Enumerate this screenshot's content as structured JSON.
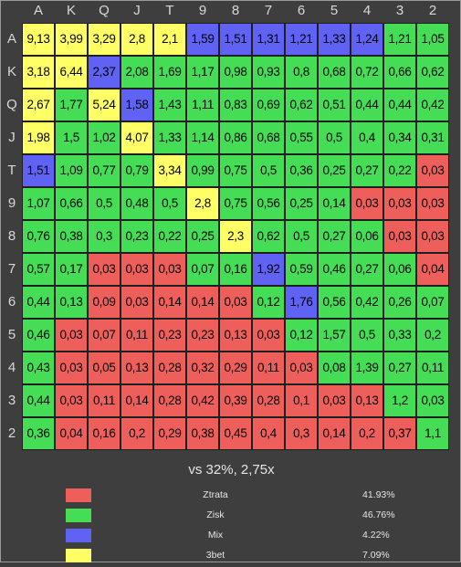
{
  "column_labels": [
    "A",
    "K",
    "Q",
    "J",
    "T",
    "9",
    "8",
    "7",
    "6",
    "5",
    "4",
    "3",
    "2"
  ],
  "row_labels": [
    "A",
    "K",
    "Q",
    "J",
    "T",
    "9",
    "8",
    "7",
    "6",
    "5",
    "4",
    "3",
    "2"
  ],
  "category_colors": {
    "loss": "#ee5f5b",
    "profit": "#44dd55",
    "mix": "#5f62f2",
    "3bet": "#ffff66"
  },
  "grid": [
    [
      [
        "9,13",
        "3bet"
      ],
      [
        "3,99",
        "3bet"
      ],
      [
        "3,29",
        "3bet"
      ],
      [
        "2,8",
        "3bet"
      ],
      [
        "2,1",
        "3bet"
      ],
      [
        "1,59",
        "mix"
      ],
      [
        "1,51",
        "mix"
      ],
      [
        "1,31",
        "mix"
      ],
      [
        "1,21",
        "mix"
      ],
      [
        "1,33",
        "mix"
      ],
      [
        "1,24",
        "mix"
      ],
      [
        "1,21",
        "profit"
      ],
      [
        "1,05",
        "profit"
      ]
    ],
    [
      [
        "3,18",
        "3bet"
      ],
      [
        "6,44",
        "3bet"
      ],
      [
        "2,37",
        "mix"
      ],
      [
        "2,08",
        "profit"
      ],
      [
        "1,69",
        "profit"
      ],
      [
        "1,17",
        "profit"
      ],
      [
        "0,98",
        "profit"
      ],
      [
        "0,93",
        "profit"
      ],
      [
        "0,8",
        "profit"
      ],
      [
        "0,68",
        "profit"
      ],
      [
        "0,72",
        "profit"
      ],
      [
        "0,66",
        "profit"
      ],
      [
        "0,62",
        "profit"
      ]
    ],
    [
      [
        "2,67",
        "3bet"
      ],
      [
        "1,77",
        "profit"
      ],
      [
        "5,24",
        "3bet"
      ],
      [
        "1,58",
        "mix"
      ],
      [
        "1,43",
        "profit"
      ],
      [
        "1,11",
        "profit"
      ],
      [
        "0,83",
        "profit"
      ],
      [
        "0,69",
        "profit"
      ],
      [
        "0,62",
        "profit"
      ],
      [
        "0,51",
        "profit"
      ],
      [
        "0,44",
        "profit"
      ],
      [
        "0,44",
        "profit"
      ],
      [
        "0,42",
        "profit"
      ]
    ],
    [
      [
        "1,98",
        "3bet"
      ],
      [
        "1,5",
        "profit"
      ],
      [
        "1,02",
        "profit"
      ],
      [
        "4,07",
        "3bet"
      ],
      [
        "1,33",
        "profit"
      ],
      [
        "1,14",
        "profit"
      ],
      [
        "0,86",
        "profit"
      ],
      [
        "0,68",
        "profit"
      ],
      [
        "0,55",
        "profit"
      ],
      [
        "0,5",
        "profit"
      ],
      [
        "0,4",
        "profit"
      ],
      [
        "0,34",
        "profit"
      ],
      [
        "0,31",
        "profit"
      ]
    ],
    [
      [
        "1,51",
        "mix"
      ],
      [
        "1,09",
        "profit"
      ],
      [
        "0,77",
        "profit"
      ],
      [
        "0,79",
        "profit"
      ],
      [
        "3,34",
        "3bet"
      ],
      [
        "0,99",
        "profit"
      ],
      [
        "0,75",
        "profit"
      ],
      [
        "0,5",
        "profit"
      ],
      [
        "0,36",
        "profit"
      ],
      [
        "0,25",
        "profit"
      ],
      [
        "0,27",
        "profit"
      ],
      [
        "0,22",
        "profit"
      ],
      [
        "0,03",
        "loss"
      ]
    ],
    [
      [
        "1,07",
        "profit"
      ],
      [
        "0,66",
        "profit"
      ],
      [
        "0,5",
        "profit"
      ],
      [
        "0,48",
        "profit"
      ],
      [
        "0,5",
        "profit"
      ],
      [
        "2,8",
        "3bet"
      ],
      [
        "0,75",
        "profit"
      ],
      [
        "0,56",
        "profit"
      ],
      [
        "0,25",
        "profit"
      ],
      [
        "0,14",
        "profit"
      ],
      [
        "0,03",
        "loss"
      ],
      [
        "0,03",
        "loss"
      ],
      [
        "0,03",
        "loss"
      ]
    ],
    [
      [
        "0,76",
        "profit"
      ],
      [
        "0,38",
        "profit"
      ],
      [
        "0,3",
        "profit"
      ],
      [
        "0,23",
        "profit"
      ],
      [
        "0,22",
        "profit"
      ],
      [
        "0,25",
        "profit"
      ],
      [
        "2,3",
        "3bet"
      ],
      [
        "0,62",
        "profit"
      ],
      [
        "0,5",
        "profit"
      ],
      [
        "0,27",
        "profit"
      ],
      [
        "0,06",
        "profit"
      ],
      [
        "0,03",
        "loss"
      ],
      [
        "0,03",
        "loss"
      ]
    ],
    [
      [
        "0,57",
        "profit"
      ],
      [
        "0,17",
        "profit"
      ],
      [
        "0,03",
        "loss"
      ],
      [
        "0,03",
        "loss"
      ],
      [
        "0,03",
        "loss"
      ],
      [
        "0,07",
        "profit"
      ],
      [
        "0,16",
        "profit"
      ],
      [
        "1,92",
        "mix"
      ],
      [
        "0,59",
        "profit"
      ],
      [
        "0,46",
        "profit"
      ],
      [
        "0,27",
        "profit"
      ],
      [
        "0,06",
        "profit"
      ],
      [
        "0,04",
        "loss"
      ]
    ],
    [
      [
        "0,44",
        "profit"
      ],
      [
        "0,13",
        "profit"
      ],
      [
        "0,09",
        "loss"
      ],
      [
        "0,03",
        "loss"
      ],
      [
        "0,14",
        "loss"
      ],
      [
        "0,14",
        "loss"
      ],
      [
        "0,03",
        "loss"
      ],
      [
        "0,12",
        "profit"
      ],
      [
        "1,76",
        "mix"
      ],
      [
        "0,56",
        "profit"
      ],
      [
        "0,42",
        "profit"
      ],
      [
        "0,26",
        "profit"
      ],
      [
        "0,07",
        "profit"
      ]
    ],
    [
      [
        "0,46",
        "profit"
      ],
      [
        "0,03",
        "loss"
      ],
      [
        "0,07",
        "loss"
      ],
      [
        "0,11",
        "loss"
      ],
      [
        "0,23",
        "loss"
      ],
      [
        "0,23",
        "loss"
      ],
      [
        "0,13",
        "loss"
      ],
      [
        "0,03",
        "loss"
      ],
      [
        "0,12",
        "profit"
      ],
      [
        "1,57",
        "profit"
      ],
      [
        "0,5",
        "profit"
      ],
      [
        "0,33",
        "profit"
      ],
      [
        "0,2",
        "profit"
      ]
    ],
    [
      [
        "0,43",
        "profit"
      ],
      [
        "0,03",
        "loss"
      ],
      [
        "0,05",
        "loss"
      ],
      [
        "0,13",
        "loss"
      ],
      [
        "0,28",
        "loss"
      ],
      [
        "0,32",
        "loss"
      ],
      [
        "0,29",
        "loss"
      ],
      [
        "0,11",
        "loss"
      ],
      [
        "0,03",
        "loss"
      ],
      [
        "0,08",
        "profit"
      ],
      [
        "1,39",
        "profit"
      ],
      [
        "0,27",
        "profit"
      ],
      [
        "0,11",
        "profit"
      ]
    ],
    [
      [
        "0,44",
        "profit"
      ],
      [
        "0,03",
        "loss"
      ],
      [
        "0,11",
        "loss"
      ],
      [
        "0,14",
        "loss"
      ],
      [
        "0,28",
        "loss"
      ],
      [
        "0,42",
        "loss"
      ],
      [
        "0,39",
        "loss"
      ],
      [
        "0,28",
        "loss"
      ],
      [
        "0,1",
        "loss"
      ],
      [
        "0,03",
        "loss"
      ],
      [
        "0,13",
        "loss"
      ],
      [
        "1,2",
        "profit"
      ],
      [
        "0,03",
        "profit"
      ]
    ],
    [
      [
        "0,36",
        "profit"
      ],
      [
        "0,04",
        "loss"
      ],
      [
        "0,16",
        "loss"
      ],
      [
        "0,2",
        "loss"
      ],
      [
        "0,29",
        "loss"
      ],
      [
        "0,38",
        "loss"
      ],
      [
        "0,45",
        "loss"
      ],
      [
        "0,4",
        "loss"
      ],
      [
        "0,3",
        "loss"
      ],
      [
        "0,14",
        "loss"
      ],
      [
        "0,2",
        "loss"
      ],
      [
        "0,37",
        "loss"
      ],
      [
        "1,1",
        "profit"
      ]
    ]
  ],
  "subtitle": "vs 32%, 2,75x",
  "legend": [
    {
      "key": "loss",
      "label": "Ztrata",
      "percent": "41.93%"
    },
    {
      "key": "profit",
      "label": "Zisk",
      "percent": "46.76%"
    },
    {
      "key": "mix",
      "label": "Mix",
      "percent": "4.22%"
    },
    {
      "key": "3bet",
      "label": "3bet",
      "percent": "7.09%"
    }
  ]
}
